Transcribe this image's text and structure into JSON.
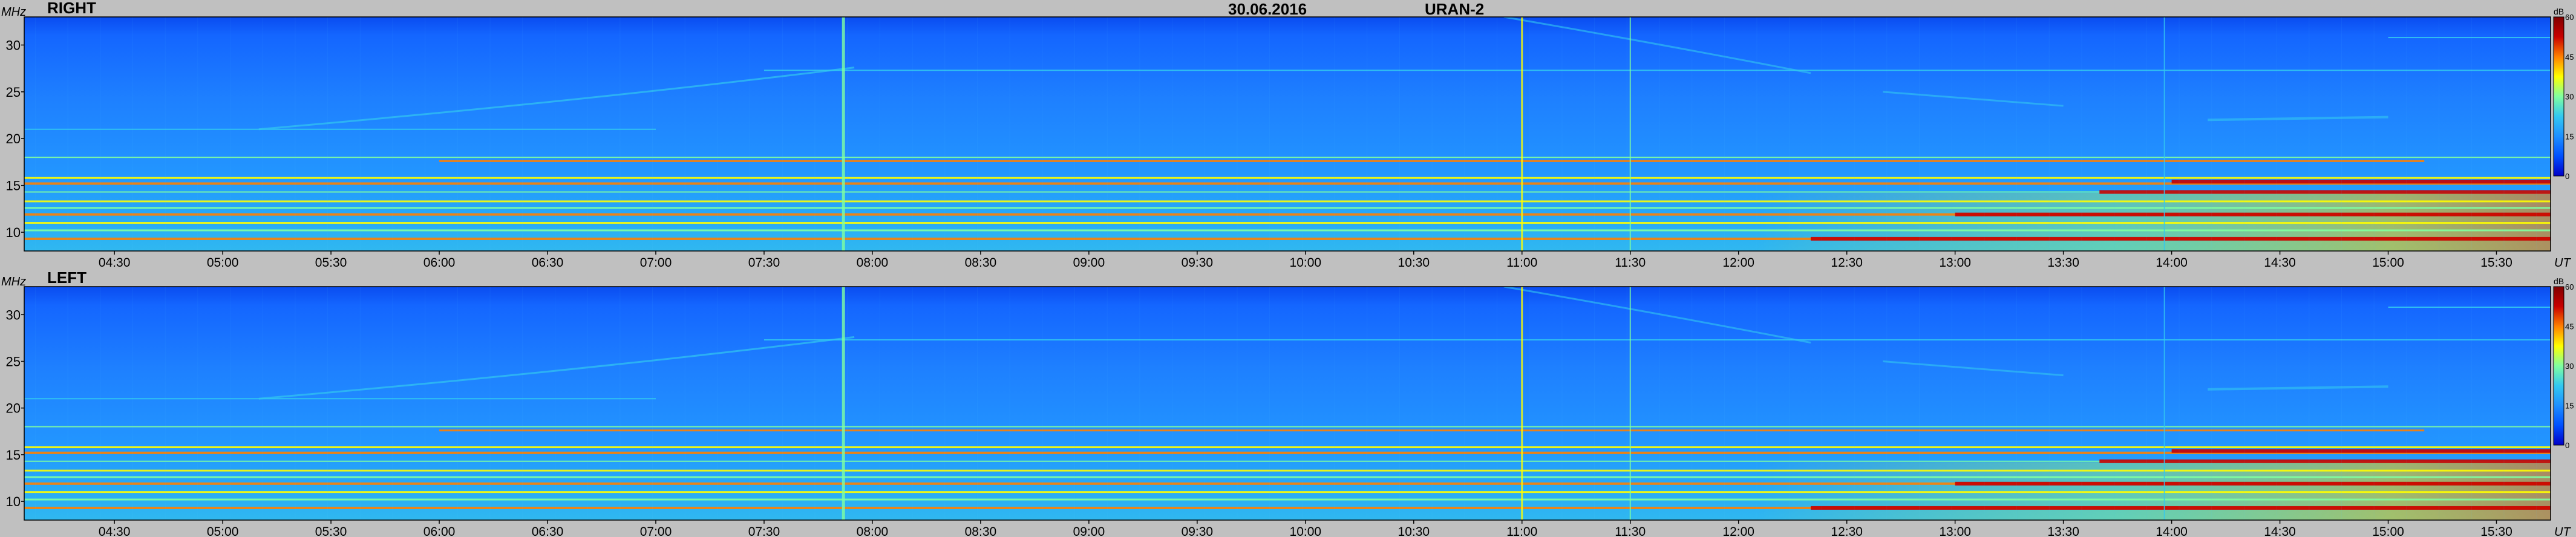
{
  "header": {
    "date": "30.06.2016",
    "station": "URAN-2"
  },
  "chart_data": [
    {
      "type": "heatmap",
      "panel_label": "RIGHT",
      "ylabel": "MHz",
      "xlabel": "UT",
      "x_ticks": [
        "04:30",
        "05:00",
        "05:30",
        "06:00",
        "06:30",
        "07:00",
        "07:30",
        "08:00",
        "08:30",
        "09:00",
        "09:30",
        "10:00",
        "10:30",
        "11:00",
        "11:30",
        "12:00",
        "12:30",
        "13:00",
        "13:30",
        "14:00",
        "14:30",
        "15:00",
        "15:30"
      ],
      "x_range": [
        "04:05",
        "15:45"
      ],
      "y_ticks": [
        10,
        15,
        20,
        25,
        30
      ],
      "y_range": [
        8,
        33
      ],
      "colorbar": {
        "unit": "dB",
        "ticks": [
          0,
          15,
          30,
          45,
          60
        ],
        "range": [
          0,
          60
        ]
      },
      "colors": [
        "#0000c8",
        "#0050ff",
        "#1e90ff",
        "#32c8f0",
        "#80ffa0",
        "#ffff00",
        "#ff8000",
        "#c80000",
        "#800000"
      ]
    },
    {
      "type": "heatmap",
      "panel_label": "LEFT",
      "ylabel": "MHz",
      "xlabel": "UT",
      "x_ticks": [
        "04:30",
        "05:00",
        "05:30",
        "06:00",
        "06:30",
        "07:00",
        "07:30",
        "08:00",
        "08:30",
        "09:00",
        "09:30",
        "10:00",
        "10:30",
        "11:00",
        "11:30",
        "12:00",
        "12:30",
        "13:00",
        "13:30",
        "14:00",
        "14:30",
        "15:00",
        "15:30"
      ],
      "x_range": [
        "04:05",
        "15:45"
      ],
      "y_ticks": [
        10,
        15,
        20,
        25,
        30
      ],
      "y_range": [
        8,
        33
      ],
      "colorbar": {
        "unit": "dB",
        "ticks": [
          0,
          15,
          30,
          45,
          60
        ],
        "range": [
          0,
          60
        ]
      },
      "colors": [
        "#0000c8",
        "#0050ff",
        "#1e90ff",
        "#32c8f0",
        "#80ffa0",
        "#ffff00",
        "#ff8000",
        "#c80000",
        "#800000"
      ]
    }
  ]
}
